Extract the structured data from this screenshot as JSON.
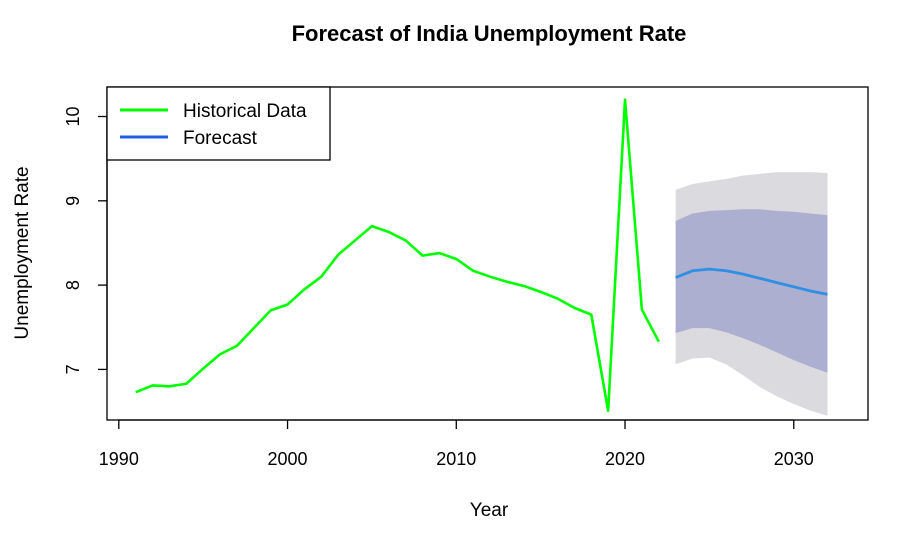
{
  "chart_data": {
    "type": "line",
    "title": "Forecast of India Unemployment Rate",
    "xlabel": "Year",
    "ylabel": "Unemployment Rate",
    "xlim": [
      1989.3,
      2034.4
    ],
    "ylim": [
      6.4,
      10.35
    ],
    "x_ticks": [
      1990,
      2000,
      2010,
      2020,
      2030
    ],
    "y_ticks": [
      7,
      8,
      9,
      10
    ],
    "grid": false,
    "legend_position": "top-left",
    "colors": {
      "historical": "#00ff00",
      "forecast": "#2f8fe3",
      "band80": "#adafd1",
      "band95": "#dbdbdf",
      "legend_forecast": "#1f5fe8"
    },
    "legend": [
      {
        "label": "Historical Data",
        "color": "#00ff00"
      },
      {
        "label": "Forecast",
        "color": "#1f5fe8"
      }
    ],
    "series": [
      {
        "name": "Historical Data",
        "x": [
          1991,
          1992,
          1993,
          1994,
          1995,
          1996,
          1997,
          1998,
          1999,
          2000,
          2001,
          2002,
          2003,
          2004,
          2005,
          2006,
          2007,
          2008,
          2009,
          2010,
          2011,
          2012,
          2013,
          2014,
          2015,
          2016,
          2017,
          2018,
          2019,
          2020,
          2021,
          2022
        ],
        "values": [
          6.73,
          6.81,
          6.8,
          6.83,
          7.01,
          7.18,
          7.28,
          7.49,
          7.7,
          7.77,
          7.95,
          8.1,
          8.36,
          8.53,
          8.7,
          8.63,
          8.53,
          8.35,
          8.38,
          8.31,
          8.17,
          8.1,
          8.04,
          7.99,
          7.92,
          7.84,
          7.73,
          7.65,
          6.51,
          10.2,
          7.71,
          7.33
        ]
      },
      {
        "name": "Forecast",
        "x": [
          2023,
          2024,
          2025,
          2026,
          2027,
          2028,
          2029,
          2030,
          2031,
          2032
        ],
        "values": [
          8.09,
          8.17,
          8.19,
          8.17,
          8.13,
          8.08,
          8.03,
          7.98,
          7.93,
          7.89
        ],
        "lo80": [
          7.43,
          7.49,
          7.49,
          7.44,
          7.37,
          7.29,
          7.2,
          7.11,
          7.03,
          6.96
        ],
        "hi80": [
          8.76,
          8.85,
          8.88,
          8.89,
          8.9,
          8.9,
          8.88,
          8.87,
          8.85,
          8.83
        ],
        "lo95": [
          7.06,
          7.13,
          7.14,
          7.06,
          6.93,
          6.79,
          6.68,
          6.59,
          6.51,
          6.45
        ],
        "hi95": [
          9.13,
          9.2,
          9.23,
          9.26,
          9.3,
          9.32,
          9.34,
          9.34,
          9.34,
          9.33
        ]
      }
    ]
  }
}
